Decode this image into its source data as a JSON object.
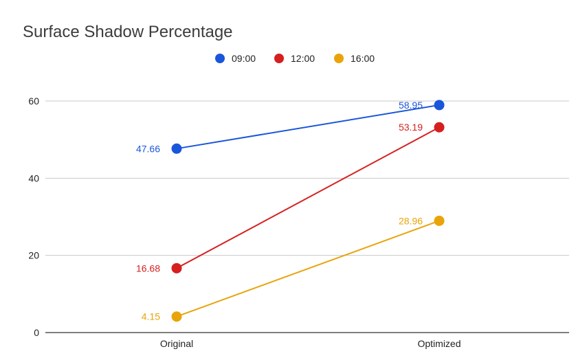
{
  "chart_data": {
    "type": "line",
    "title": "Surface Shadow Percentage",
    "categories": [
      "Original",
      "Optimized"
    ],
    "ylim": [
      0,
      60
    ],
    "yticks": [
      0,
      20,
      40,
      60
    ],
    "grid": true,
    "legend_position": "top-center",
    "series": [
      {
        "name": "09:00",
        "color": "#1a56db",
        "values": [
          47.66,
          58.95
        ],
        "labels": [
          "47.66",
          "58.95"
        ]
      },
      {
        "name": "12:00",
        "color": "#d61f1f",
        "values": [
          16.68,
          53.19
        ],
        "labels": [
          "16.68",
          "53.19"
        ]
      },
      {
        "name": "16:00",
        "color": "#e8a40a",
        "values": [
          4.15,
          28.96
        ],
        "labels": [
          "4.15",
          "28.96"
        ]
      }
    ]
  }
}
